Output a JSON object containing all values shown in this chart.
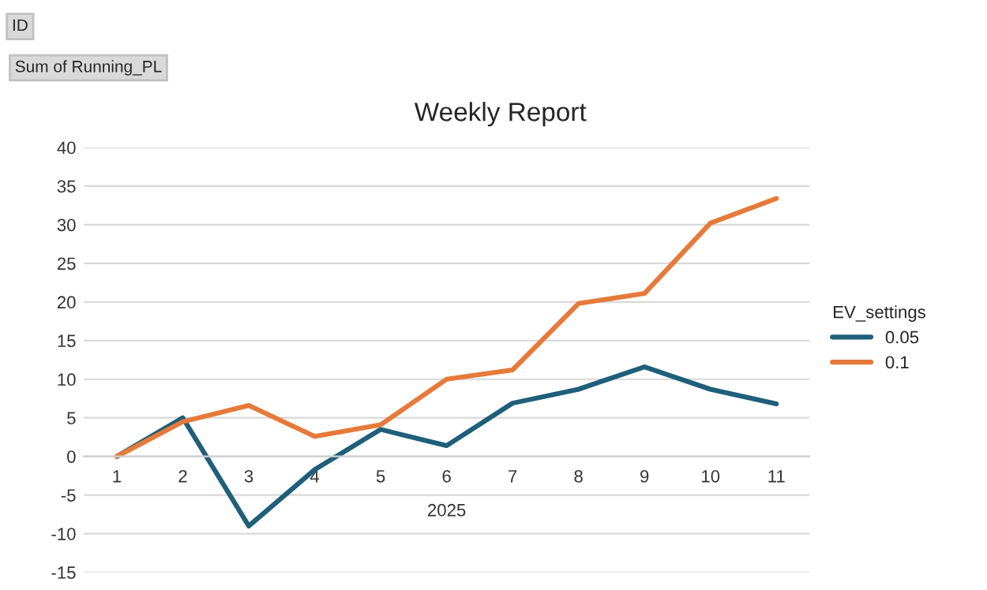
{
  "chart_data": {
    "type": "line",
    "title": "Weekly Report",
    "xlabel": "2025",
    "legend_title": "EV_settings",
    "annotations": [
      "ID",
      "Sum of Running_PL"
    ],
    "categories": [
      "1",
      "2",
      "3",
      "4",
      "5",
      "6",
      "7",
      "8",
      "9",
      "10",
      "11"
    ],
    "series": [
      {
        "name": "0.05",
        "color": "#1f5f7a",
        "values": [
          0,
          5.0,
          -9.0,
          -1.7,
          3.5,
          1.4,
          6.9,
          8.7,
          11.6,
          8.7,
          6.8
        ]
      },
      {
        "name": "0.1",
        "color": "#e67a3a",
        "values": [
          0,
          4.5,
          6.6,
          2.6,
          4.1,
          10.0,
          11.2,
          19.8,
          21.1,
          30.2,
          33.4
        ]
      }
    ],
    "ylim": [
      -15,
      40
    ],
    "yticks": [
      -15,
      -10,
      -5,
      0,
      5,
      10,
      15,
      20,
      25,
      30,
      35,
      40
    ],
    "grid": "y",
    "legend": "right",
    "line_style": "solid",
    "marker": "none"
  }
}
